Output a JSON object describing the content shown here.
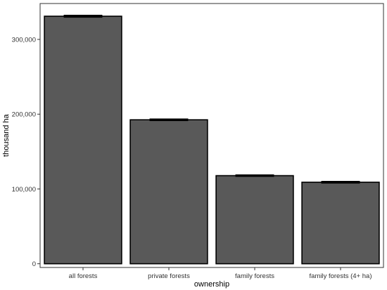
{
  "chart_data": {
    "type": "bar",
    "title": "",
    "xlabel": "ownership",
    "ylabel": "thousand ha",
    "categories": [
      "all forests",
      "private forests",
      "family forests",
      "family forests (4+ ha)"
    ],
    "values": [
      331000,
      192500,
      117800,
      109000
    ],
    "error_bars": [
      {
        "low": 329800,
        "high": 332200
      },
      {
        "low": 191500,
        "high": 193500
      },
      {
        "low": 116900,
        "high": 118700
      },
      {
        "low": 108000,
        "high": 110000
      }
    ],
    "ylim": [
      -5000,
      348000
    ],
    "yticks": [
      0,
      100000,
      200000,
      300000
    ],
    "ytick_labels": [
      "0",
      "100,000",
      "200,000",
      "300,000"
    ],
    "grid": false,
    "legend": "none",
    "colors": {
      "bar_fill": "#595959",
      "bar_stroke": "#000000",
      "error_bar": "#000000"
    }
  }
}
